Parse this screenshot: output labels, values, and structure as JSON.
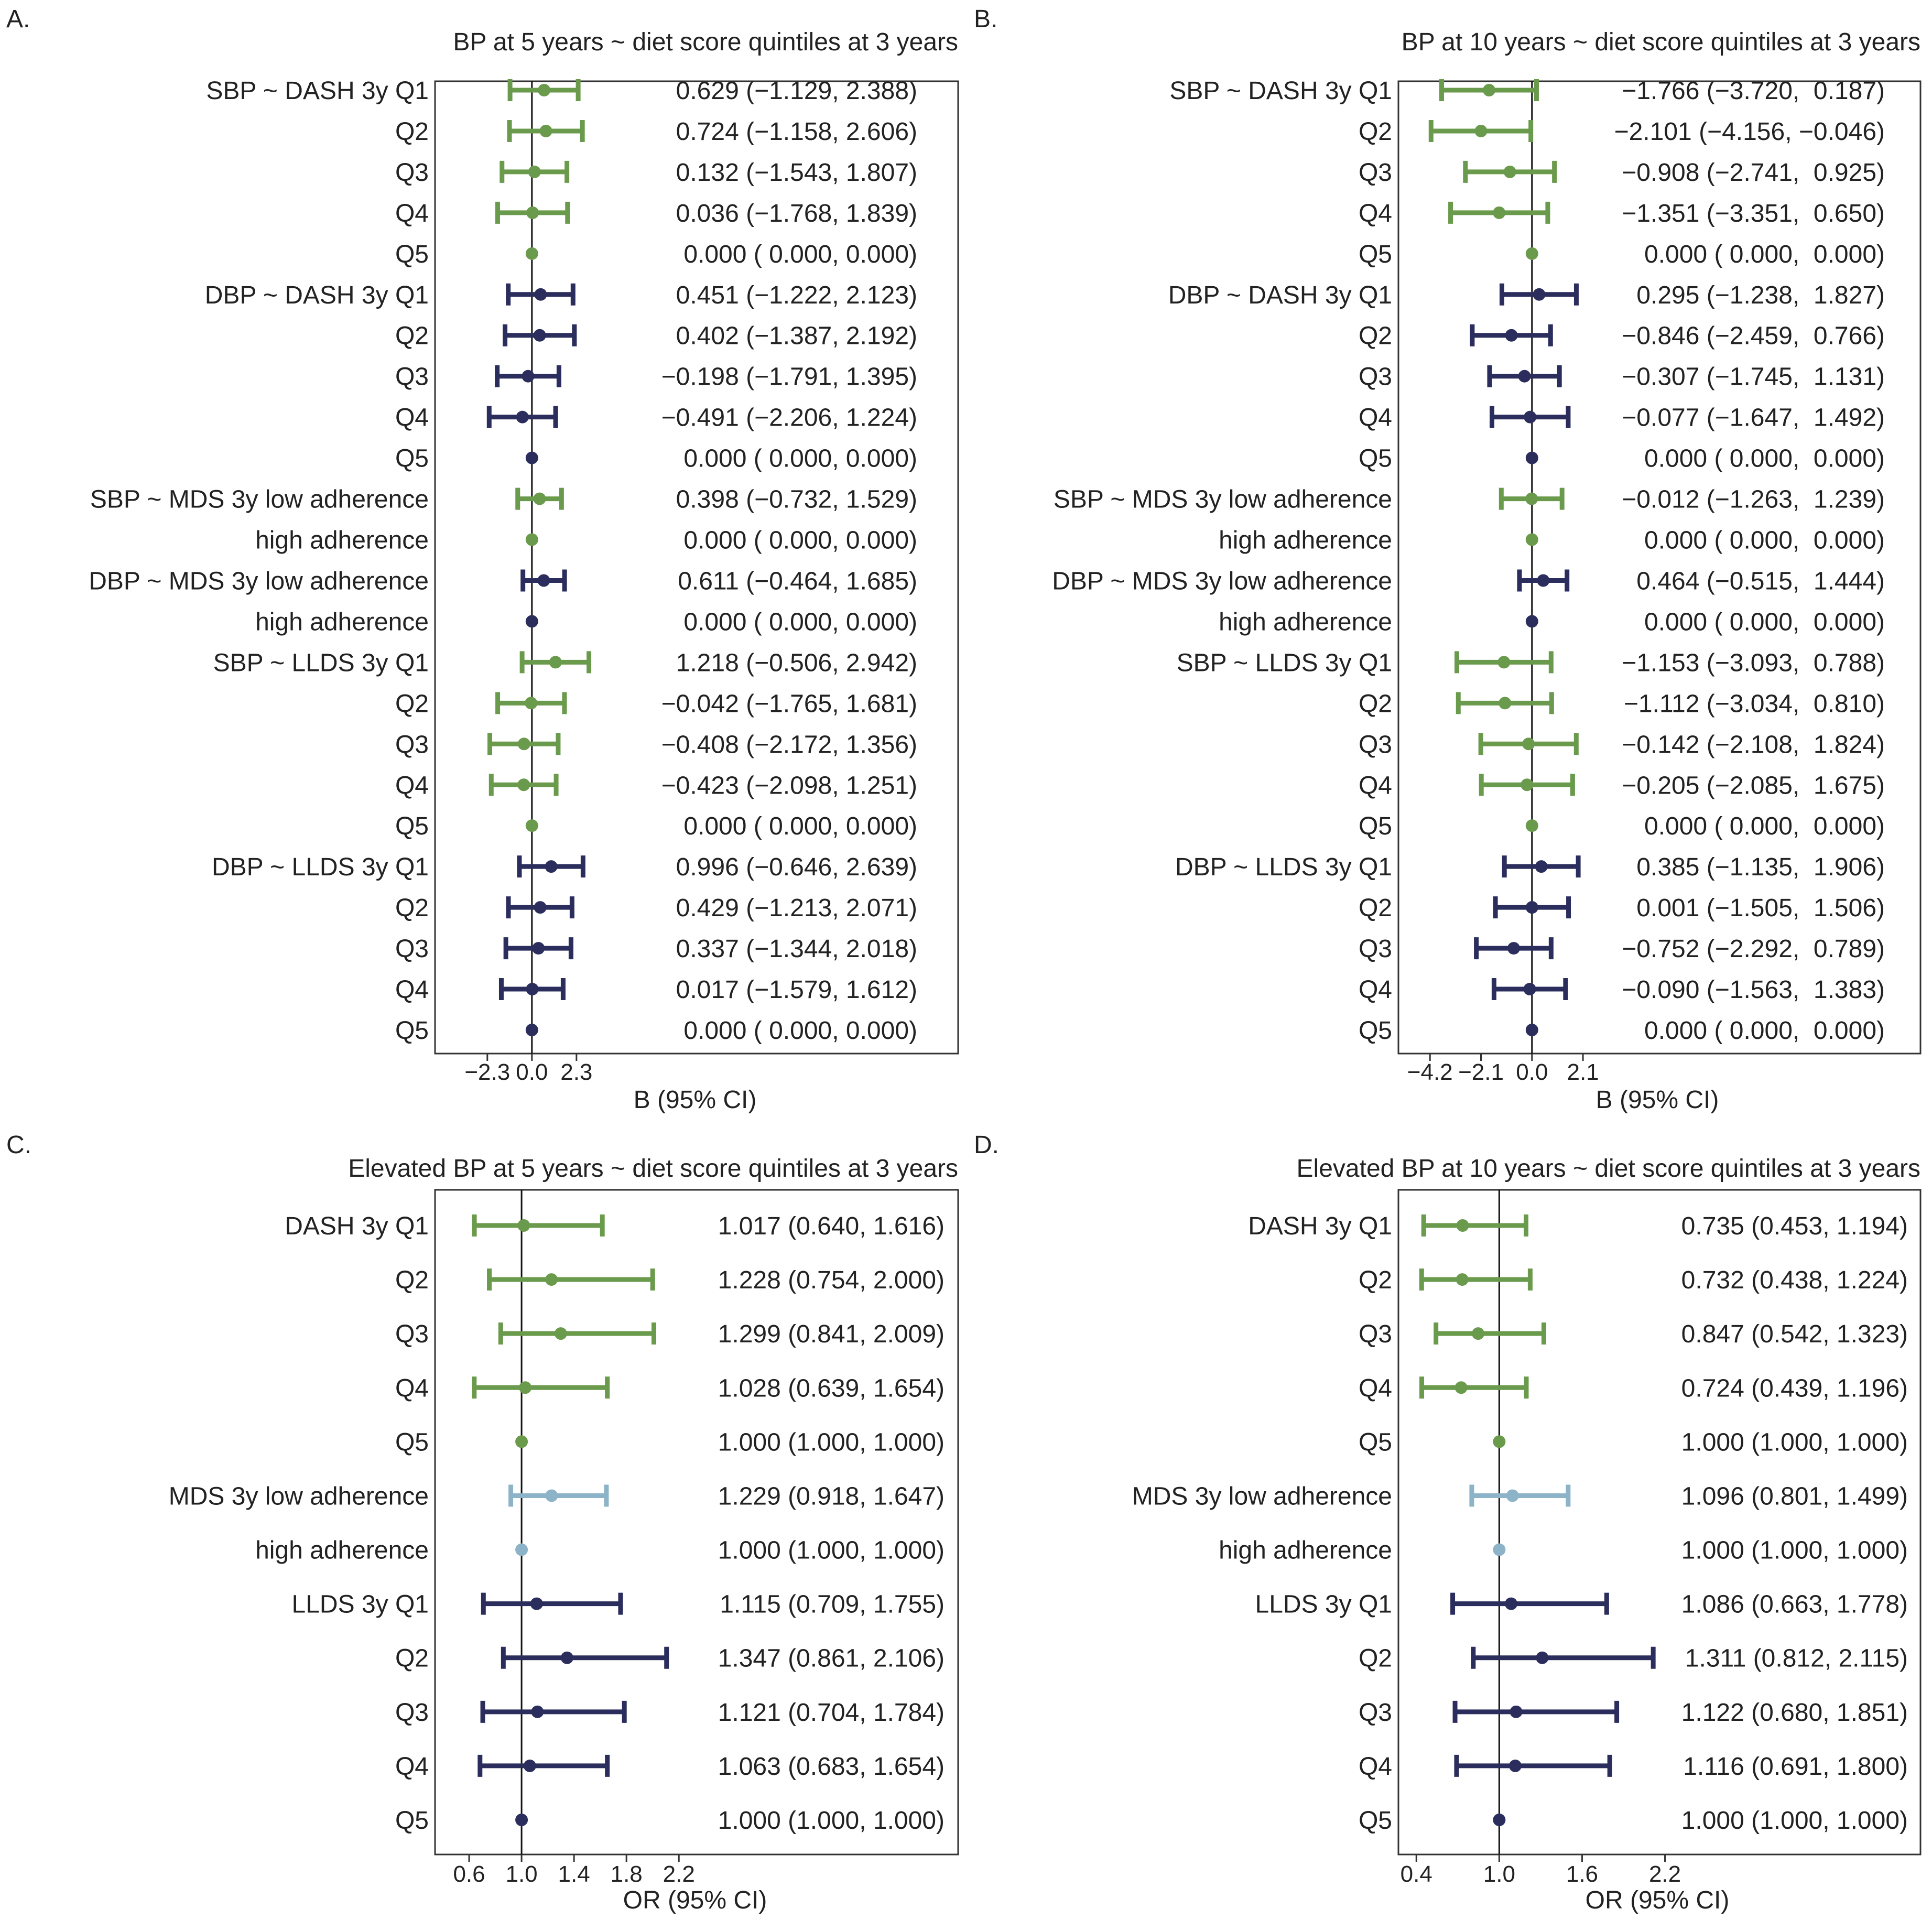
{
  "chart_data": [
    {
      "type": "forest",
      "panel_label": "A.",
      "title": "BP at 5 years ~ diet score quintiles at 3 years",
      "xlabel": "B (95% CI)",
      "xlim": [
        -5.0,
        22.0
      ],
      "ref": 0,
      "xticks": [
        -2.3,
        0.0,
        2.3
      ],
      "xtick_labels": [
        "−2.3",
        "0.0",
        "2.3"
      ],
      "colors": {
        "green": "#6a9a4b",
        "navy": "#2b2d5c",
        "blue": "#8db3c8"
      },
      "rows": [
        {
          "label": "SBP ~ DASH 3y Q1",
          "est": 0.629,
          "lo": -1.129,
          "hi": 2.388,
          "color": "green",
          "text": "0.629 (−1.129, 2.388)"
        },
        {
          "label": "Q2",
          "est": 0.724,
          "lo": -1.158,
          "hi": 2.606,
          "color": "green",
          "text": "0.724 (−1.158, 2.606)"
        },
        {
          "label": "Q3",
          "est": 0.132,
          "lo": -1.543,
          "hi": 1.807,
          "color": "green",
          "text": "0.132 (−1.543, 1.807)"
        },
        {
          "label": "Q4",
          "est": 0.036,
          "lo": -1.768,
          "hi": 1.839,
          "color": "green",
          "text": "0.036 (−1.768, 1.839)"
        },
        {
          "label": "Q5",
          "est": 0.0,
          "lo": 0.0,
          "hi": 0.0,
          "color": "green",
          "text": "0.000 ( 0.000, 0.000)"
        },
        {
          "label": "DBP ~ DASH 3y Q1",
          "est": 0.451,
          "lo": -1.222,
          "hi": 2.123,
          "color": "navy",
          "text": "0.451 (−1.222, 2.123)"
        },
        {
          "label": "Q2",
          "est": 0.402,
          "lo": -1.387,
          "hi": 2.192,
          "color": "navy",
          "text": "0.402 (−1.387, 2.192)"
        },
        {
          "label": "Q3",
          "est": -0.198,
          "lo": -1.791,
          "hi": 1.395,
          "color": "navy",
          "text": "−0.198 (−1.791, 1.395)"
        },
        {
          "label": "Q4",
          "est": -0.491,
          "lo": -2.206,
          "hi": 1.224,
          "color": "navy",
          "text": "−0.491 (−2.206, 1.224)"
        },
        {
          "label": "Q5",
          "est": 0.0,
          "lo": 0.0,
          "hi": 0.0,
          "color": "navy",
          "text": "0.000 ( 0.000, 0.000)"
        },
        {
          "label": "SBP ~ MDS 3y low adherence",
          "est": 0.398,
          "lo": -0.732,
          "hi": 1.529,
          "color": "green",
          "text": "0.398 (−0.732, 1.529)"
        },
        {
          "label": "high adherence",
          "est": 0.0,
          "lo": 0.0,
          "hi": 0.0,
          "color": "green",
          "text": "0.000 ( 0.000, 0.000)"
        },
        {
          "label": "DBP ~ MDS 3y low adherence",
          "est": 0.611,
          "lo": -0.464,
          "hi": 1.685,
          "color": "navy",
          "text": "0.611 (−0.464, 1.685)"
        },
        {
          "label": "high adherence",
          "est": 0.0,
          "lo": 0.0,
          "hi": 0.0,
          "color": "navy",
          "text": "0.000 ( 0.000, 0.000)"
        },
        {
          "label": "SBP ~ LLDS 3y Q1",
          "est": 1.218,
          "lo": -0.506,
          "hi": 2.942,
          "color": "green",
          "text": "1.218 (−0.506, 2.942)"
        },
        {
          "label": "Q2",
          "est": -0.042,
          "lo": -1.765,
          "hi": 1.681,
          "color": "green",
          "text": "−0.042 (−1.765, 1.681)"
        },
        {
          "label": "Q3",
          "est": -0.408,
          "lo": -2.172,
          "hi": 1.356,
          "color": "green",
          "text": "−0.408 (−2.172, 1.356)"
        },
        {
          "label": "Q4",
          "est": -0.423,
          "lo": -2.098,
          "hi": 1.251,
          "color": "green",
          "text": "−0.423 (−2.098, 1.251)"
        },
        {
          "label": "Q5",
          "est": 0.0,
          "lo": 0.0,
          "hi": 0.0,
          "color": "green",
          "text": "0.000 ( 0.000, 0.000)"
        },
        {
          "label": "DBP ~ LLDS 3y Q1",
          "est": 0.996,
          "lo": -0.646,
          "hi": 2.639,
          "color": "navy",
          "text": "0.996 (−0.646, 2.639)"
        },
        {
          "label": "Q2",
          "est": 0.429,
          "lo": -1.213,
          "hi": 2.071,
          "color": "navy",
          "text": "0.429 (−1.213, 2.071)"
        },
        {
          "label": "Q3",
          "est": 0.337,
          "lo": -1.344,
          "hi": 2.018,
          "color": "navy",
          "text": "0.337 (−1.344, 2.018)"
        },
        {
          "label": "Q4",
          "est": 0.017,
          "lo": -1.579,
          "hi": 1.612,
          "color": "navy",
          "text": "0.017 (−1.579, 1.612)"
        },
        {
          "label": "Q5",
          "est": 0.0,
          "lo": 0.0,
          "hi": 0.0,
          "color": "navy",
          "text": "0.000 ( 0.000, 0.000)"
        }
      ]
    },
    {
      "type": "forest",
      "panel_label": "B.",
      "title": "BP at 10 years ~ diet score quintiles at 3 years",
      "xlabel": "B (95% CI)",
      "xlim": [
        -5.5,
        16.0
      ],
      "ref": 0,
      "xticks": [
        -4.2,
        -2.1,
        0.0,
        2.1
      ],
      "xtick_labels": [
        "−4.2",
        "−2.1",
        "0.0",
        "2.1"
      ],
      "colors": {
        "green": "#6a9a4b",
        "navy": "#2b2d5c",
        "blue": "#8db3c8"
      },
      "rows": [
        {
          "label": "SBP ~ DASH 3y Q1",
          "est": -1.766,
          "lo": -3.72,
          "hi": 0.187,
          "color": "green",
          "text": "−1.766 (−3.720,  0.187)"
        },
        {
          "label": "Q2",
          "est": -2.101,
          "lo": -4.156,
          "hi": -0.046,
          "color": "green",
          "text": "−2.101 (−4.156, −0.046)"
        },
        {
          "label": "Q3",
          "est": -0.908,
          "lo": -2.741,
          "hi": 0.925,
          "color": "green",
          "text": "−0.908 (−2.741,  0.925)"
        },
        {
          "label": "Q4",
          "est": -1.351,
          "lo": -3.351,
          "hi": 0.65,
          "color": "green",
          "text": "−1.351 (−3.351,  0.650)"
        },
        {
          "label": "Q5",
          "est": 0.0,
          "lo": 0.0,
          "hi": 0.0,
          "color": "green",
          "text": "0.000 ( 0.000,  0.000)"
        },
        {
          "label": "DBP ~ DASH 3y Q1",
          "est": 0.295,
          "lo": -1.238,
          "hi": 1.827,
          "color": "navy",
          "text": "0.295 (−1.238,  1.827)"
        },
        {
          "label": "Q2",
          "est": -0.846,
          "lo": -2.459,
          "hi": 0.766,
          "color": "navy",
          "text": "−0.846 (−2.459,  0.766)"
        },
        {
          "label": "Q3",
          "est": -0.307,
          "lo": -1.745,
          "hi": 1.131,
          "color": "navy",
          "text": "−0.307 (−1.745,  1.131)"
        },
        {
          "label": "Q4",
          "est": -0.077,
          "lo": -1.647,
          "hi": 1.492,
          "color": "navy",
          "text": "−0.077 (−1.647,  1.492)"
        },
        {
          "label": "Q5",
          "est": 0.0,
          "lo": 0.0,
          "hi": 0.0,
          "color": "navy",
          "text": "0.000 ( 0.000,  0.000)"
        },
        {
          "label": "SBP ~ MDS 3y low adherence",
          "est": -0.012,
          "lo": -1.263,
          "hi": 1.239,
          "color": "green",
          "text": "−0.012 (−1.263,  1.239)"
        },
        {
          "label": "high adherence",
          "est": 0.0,
          "lo": 0.0,
          "hi": 0.0,
          "color": "green",
          "text": "0.000 ( 0.000,  0.000)"
        },
        {
          "label": "DBP ~ MDS 3y low adherence",
          "est": 0.464,
          "lo": -0.515,
          "hi": 1.444,
          "color": "navy",
          "text": "0.464 (−0.515,  1.444)"
        },
        {
          "label": "high adherence",
          "est": 0.0,
          "lo": 0.0,
          "hi": 0.0,
          "color": "navy",
          "text": "0.000 ( 0.000,  0.000)"
        },
        {
          "label": "SBP ~ LLDS 3y Q1",
          "est": -1.153,
          "lo": -3.093,
          "hi": 0.788,
          "color": "green",
          "text": "−1.153 (−3.093,  0.788)"
        },
        {
          "label": "Q2",
          "est": -1.112,
          "lo": -3.034,
          "hi": 0.81,
          "color": "green",
          "text": "−1.112 (−3.034,  0.810)"
        },
        {
          "label": "Q3",
          "est": -0.142,
          "lo": -2.108,
          "hi": 1.824,
          "color": "green",
          "text": "−0.142 (−2.108,  1.824)"
        },
        {
          "label": "Q4",
          "est": -0.205,
          "lo": -2.085,
          "hi": 1.675,
          "color": "green",
          "text": "−0.205 (−2.085,  1.675)"
        },
        {
          "label": "Q5",
          "est": 0.0,
          "lo": 0.0,
          "hi": 0.0,
          "color": "green",
          "text": "0.000 ( 0.000,  0.000)"
        },
        {
          "label": "DBP ~ LLDS 3y Q1",
          "est": 0.385,
          "lo": -1.135,
          "hi": 1.906,
          "color": "navy",
          "text": "0.385 (−1.135,  1.906)"
        },
        {
          "label": "Q2",
          "est": 0.001,
          "lo": -1.505,
          "hi": 1.506,
          "color": "navy",
          "text": "0.001 (−1.505,  1.506)"
        },
        {
          "label": "Q3",
          "est": -0.752,
          "lo": -2.292,
          "hi": 0.789,
          "color": "navy",
          "text": "−0.752 (−2.292,  0.789)"
        },
        {
          "label": "Q4",
          "est": -0.09,
          "lo": -1.563,
          "hi": 1.383,
          "color": "navy",
          "text": "−0.090 (−1.563,  1.383)"
        },
        {
          "label": "Q5",
          "est": 0.0,
          "lo": 0.0,
          "hi": 0.0,
          "color": "navy",
          "text": "0.000 ( 0.000,  0.000)"
        }
      ]
    },
    {
      "type": "forest",
      "panel_label": "C.",
      "title": "Elevated BP at 5 years ~ diet score quintiles at 3 years",
      "xlabel": "OR (95% CI)",
      "xlim": [
        0.34,
        4.33
      ],
      "ref": 1,
      "xticks": [
        0.6,
        1.0,
        1.4,
        1.8,
        2.2
      ],
      "xtick_labels": [
        "0.6",
        "1.0",
        "1.4",
        "1.8",
        "2.2"
      ],
      "colors": {
        "green": "#6a9a4b",
        "navy": "#2b2d5c",
        "blue": "#8db3c8"
      },
      "rows": [
        {
          "label": "DASH 3y Q1",
          "est": 1.017,
          "lo": 0.64,
          "hi": 1.616,
          "color": "green",
          "text": "1.017 (0.640, 1.616)"
        },
        {
          "label": "Q2",
          "est": 1.228,
          "lo": 0.754,
          "hi": 2.0,
          "color": "green",
          "text": "1.228 (0.754, 2.000)"
        },
        {
          "label": "Q3",
          "est": 1.299,
          "lo": 0.841,
          "hi": 2.009,
          "color": "green",
          "text": "1.299 (0.841, 2.009)"
        },
        {
          "label": "Q4",
          "est": 1.028,
          "lo": 0.639,
          "hi": 1.654,
          "color": "green",
          "text": "1.028 (0.639, 1.654)"
        },
        {
          "label": "Q5",
          "est": 1.0,
          "lo": 1.0,
          "hi": 1.0,
          "color": "green",
          "text": "1.000 (1.000, 1.000)"
        },
        {
          "label": "MDS 3y low adherence",
          "est": 1.229,
          "lo": 0.918,
          "hi": 1.647,
          "color": "blue",
          "text": "1.229 (0.918, 1.647)"
        },
        {
          "label": "high adherence",
          "est": 1.0,
          "lo": 1.0,
          "hi": 1.0,
          "color": "blue",
          "text": "1.000 (1.000, 1.000)"
        },
        {
          "label": "LLDS 3y Q1",
          "est": 1.115,
          "lo": 0.709,
          "hi": 1.755,
          "color": "navy",
          "text": "1.115 (0.709, 1.755)"
        },
        {
          "label": "Q2",
          "est": 1.347,
          "lo": 0.861,
          "hi": 2.106,
          "color": "navy",
          "text": "1.347 (0.861, 2.106)"
        },
        {
          "label": "Q3",
          "est": 1.121,
          "lo": 0.704,
          "hi": 1.784,
          "color": "navy",
          "text": "1.121 (0.704, 1.784)"
        },
        {
          "label": "Q4",
          "est": 1.063,
          "lo": 0.683,
          "hi": 1.654,
          "color": "navy",
          "text": "1.063 (0.683, 1.654)"
        },
        {
          "label": "Q5",
          "est": 1.0,
          "lo": 1.0,
          "hi": 1.0,
          "color": "navy",
          "text": "1.000 (1.000, 1.000)"
        }
      ]
    },
    {
      "type": "forest",
      "panel_label": "D.",
      "title": "Elevated BP at 10 years ~ diet score quintiles at 3 years",
      "xlabel": "OR (95% CI)",
      "xlim": [
        0.27,
        4.05
      ],
      "ref": 1,
      "xticks": [
        0.4,
        1.0,
        1.6,
        2.2
      ],
      "xtick_labels": [
        "0.4",
        "1.0",
        "1.6",
        "2.2"
      ],
      "colors": {
        "green": "#6a9a4b",
        "navy": "#2b2d5c",
        "blue": "#8db3c8"
      },
      "rows": [
        {
          "label": "DASH 3y Q1",
          "est": 0.735,
          "lo": 0.453,
          "hi": 1.194,
          "color": "green",
          "text": "0.735 (0.453, 1.194)"
        },
        {
          "label": "Q2",
          "est": 0.732,
          "lo": 0.438,
          "hi": 1.224,
          "color": "green",
          "text": "0.732 (0.438, 1.224)"
        },
        {
          "label": "Q3",
          "est": 0.847,
          "lo": 0.542,
          "hi": 1.323,
          "color": "green",
          "text": "0.847 (0.542, 1.323)"
        },
        {
          "label": "Q4",
          "est": 0.724,
          "lo": 0.439,
          "hi": 1.196,
          "color": "green",
          "text": "0.724 (0.439, 1.196)"
        },
        {
          "label": "Q5",
          "est": 1.0,
          "lo": 1.0,
          "hi": 1.0,
          "color": "green",
          "text": "1.000 (1.000, 1.000)"
        },
        {
          "label": "MDS 3y low adherence",
          "est": 1.096,
          "lo": 0.801,
          "hi": 1.499,
          "color": "blue",
          "text": "1.096 (0.801, 1.499)"
        },
        {
          "label": "high adherence",
          "est": 1.0,
          "lo": 1.0,
          "hi": 1.0,
          "color": "blue",
          "text": "1.000 (1.000, 1.000)"
        },
        {
          "label": "LLDS 3y Q1",
          "est": 1.086,
          "lo": 0.663,
          "hi": 1.778,
          "color": "navy",
          "text": "1.086 (0.663, 1.778)"
        },
        {
          "label": "Q2",
          "est": 1.311,
          "lo": 0.812,
          "hi": 2.115,
          "color": "navy",
          "text": "1.311 (0.812, 2.115)"
        },
        {
          "label": "Q3",
          "est": 1.122,
          "lo": 0.68,
          "hi": 1.851,
          "color": "navy",
          "text": "1.122 (0.680, 1.851)"
        },
        {
          "label": "Q4",
          "est": 1.116,
          "lo": 0.691,
          "hi": 1.8,
          "color": "navy",
          "text": "1.116 (0.691, 1.800)"
        },
        {
          "label": "Q5",
          "est": 1.0,
          "lo": 1.0,
          "hi": 1.0,
          "color": "navy",
          "text": "1.000 (1.000, 1.000)"
        }
      ]
    }
  ]
}
